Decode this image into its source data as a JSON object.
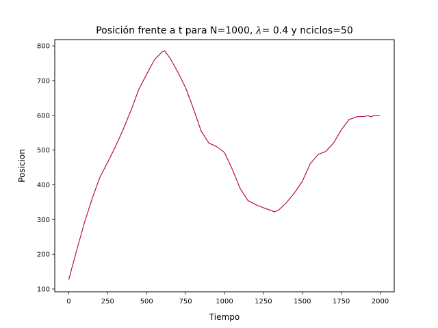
{
  "chart_data": {
    "type": "line",
    "title": "Posición frente a t para N=1000, λ= 0.4 y nciclos=50",
    "title_parts": {
      "before": "Posición frente a t para N=1000, ",
      "lambda": "λ",
      "after": "= 0.4 y nciclos=50"
    },
    "xlabel": "Tiempo",
    "ylabel": "Posicion",
    "xlim": [
      -90,
      2090
    ],
    "ylim": [
      92,
      818
    ],
    "xticks": [
      0,
      250,
      500,
      750,
      1000,
      1250,
      1500,
      1750,
      2000
    ],
    "yticks": [
      100,
      200,
      300,
      400,
      500,
      600,
      700,
      800
    ],
    "grid": false,
    "legend": "none",
    "line_color": "#b5075f",
    "series": [
      {
        "x": [
          0,
          50,
          100,
          150,
          200,
          250,
          300,
          350,
          400,
          450,
          500,
          550,
          600,
          615,
          650,
          700,
          750,
          800,
          850,
          900,
          950,
          1000,
          1050,
          1100,
          1150,
          1200,
          1250,
          1300,
          1320,
          1350,
          1400,
          1450,
          1500,
          1550,
          1600,
          1650,
          1700,
          1750,
          1800,
          1850,
          1900,
          1920,
          1940,
          1960,
          1980,
          2000
        ],
        "y": [
          127,
          210,
          290,
          360,
          422,
          465,
          510,
          560,
          615,
          675,
          718,
          760,
          783,
          786,
          765,
          725,
          680,
          620,
          555,
          520,
          510,
          493,
          445,
          390,
          355,
          343,
          334,
          326,
          322,
          328,
          350,
          377,
          410,
          460,
          487,
          496,
          520,
          558,
          588,
          596,
          597,
          599,
          596,
          599,
          600,
          600
        ]
      }
    ]
  }
}
